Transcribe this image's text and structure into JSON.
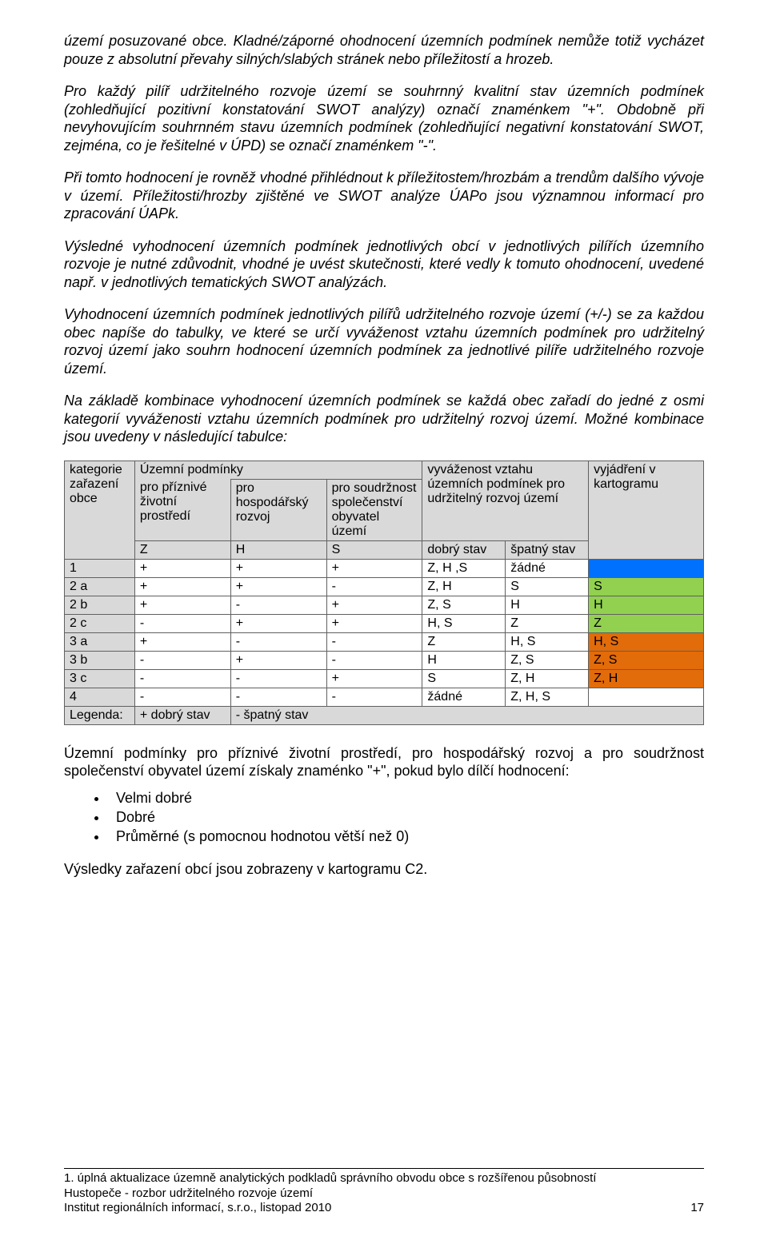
{
  "paragraphs": {
    "p1": "území posuzované obce. Kladné/záporné ohodnocení územních podmínek nemůže totiž vycházet pouze z absolutní převahy silných/slabých stránek nebo příležitostí a hrozeb.",
    "p2": "Pro každý pilíř udržitelného rozvoje území se souhrnný kvalitní stav územních podmínek (zohledňující pozitivní konstatování SWOT analýzy) označí znaménkem \"+\". Obdobně při nevyhovujícím souhrnném stavu územních podmínek (zohledňující negativní konstatování SWOT, zejména, co je řešitelné v ÚPD) se označí znaménkem \"-\".",
    "p3": "Při tomto hodnocení je rovněž vhodné přihlédnout k příležitostem/hrozbám a trendům dalšího vývoje v území. Příležitosti/hrozby zjištěné ve SWOT analýze ÚAPo jsou významnou informací pro zpracování ÚAPk.",
    "p4": "Výsledné vyhodnocení územních podmínek jednotlivých obcí v jednotlivých pilířích územního rozvoje je nutné zdůvodnit, vhodné je uvést skutečnosti, které vedly k tomuto ohodnocení, uvedené např. v jednotlivých tematických SWOT analýzách.",
    "p5": "Vyhodnocení územních podmínek jednotlivých pilířů udržitelného rozvoje území (+/-) se za každou obec napíše do tabulky, ve které se určí vyváženost vztahu územních podmínek pro udržitelný rozvoj území jako souhrn hodnocení územních podmínek za jednotlivé pilíře udržitelného rozvoje území.",
    "p6": "Na základě kombinace vyhodnocení územních podmínek se každá obec zařadí do jedné z osmi kategorií vyváženosti vztahu územních podmínek pro udržitelný rozvoj území. Možné kombinace jsou uvedeny v následující tabulce:",
    "p7": "Územní podmínky pro příznivé životní prostředí, pro hospodářský rozvoj a pro soudržnost společenství obyvatel území získaly znaménko \"+\", pokud bylo dílčí hodnocení:",
    "p8": "Výsledky zařazení obcí jsou zobrazeny v kartogramu C2."
  },
  "bullets": [
    "Velmi dobré",
    "Dobré",
    "Průměrné (s pomocnou hodnotou větší než 0)"
  ],
  "table": {
    "header": {
      "kategorie": "kategorie zařazení obce",
      "uzemni": "Územní podmínky",
      "col_z_top": "pro příznivé životní prostředí",
      "col_h_top": "pro hospodářský rozvoj",
      "col_s_top": "pro soudržnost společenství obyvatel území",
      "col_z": "Z",
      "col_h": "H",
      "col_s": "S",
      "vyvazenost_top": "vyváženost vztahu územních podmínek pro udržitelný rozvoj území",
      "dobry": "dobrý stav",
      "spatny": "špatný stav",
      "vyjadreni": "vyjádření v kartogramu"
    },
    "rows": [
      {
        "cat": "1",
        "z": "+",
        "h": "+",
        "s": "+",
        "good": "Z, H ,S",
        "bad": "žádné",
        "label": "",
        "color": "#0070ff"
      },
      {
        "cat": "2 a",
        "z": "+",
        "h": "+",
        "s": "-",
        "good": "Z, H",
        "bad": "S",
        "label": "S",
        "color": "#92d050"
      },
      {
        "cat": "2 b",
        "z": "+",
        "h": "-",
        "s": "+",
        "good": "Z, S",
        "bad": "H",
        "label": "H",
        "color": "#92d050"
      },
      {
        "cat": "2 c",
        "z": "-",
        "h": "+",
        "s": "+",
        "good": "H, S",
        "bad": "Z",
        "label": "Z",
        "color": "#92d050"
      },
      {
        "cat": "3 a",
        "z": "+",
        "h": "-",
        "s": "-",
        "good": "Z",
        "bad": "H, S",
        "label": "H, S",
        "color": "#e26b0a"
      },
      {
        "cat": "3 b",
        "z": "-",
        "h": "+",
        "s": "-",
        "good": "H",
        "bad": "Z, S",
        "label": "Z, S",
        "color": "#e26b0a"
      },
      {
        "cat": "3 c",
        "z": "-",
        "h": "-",
        "s": "+",
        "good": "S",
        "bad": "Z, H",
        "label": "Z, H",
        "color": "#e26b0a"
      },
      {
        "cat": "4",
        "z": "-",
        "h": "-",
        "s": "-",
        "good": "žádné",
        "bad": "Z, H, S",
        "label": "",
        "color": "#ffffff"
      }
    ],
    "legend": {
      "label": "Legenda:",
      "plus": "+  dobrý stav",
      "minus": "-  špatný stav"
    }
  },
  "footer": {
    "l1": "1. úplná aktualizace územně analytických podkladů správního obvodu obce s rozšířenou působností",
    "l2": "Hustopeče - rozbor udržitelného rozvoje území",
    "l3": "Institut regionálních informací, s.r.o., listopad 2010",
    "page": "17"
  }
}
